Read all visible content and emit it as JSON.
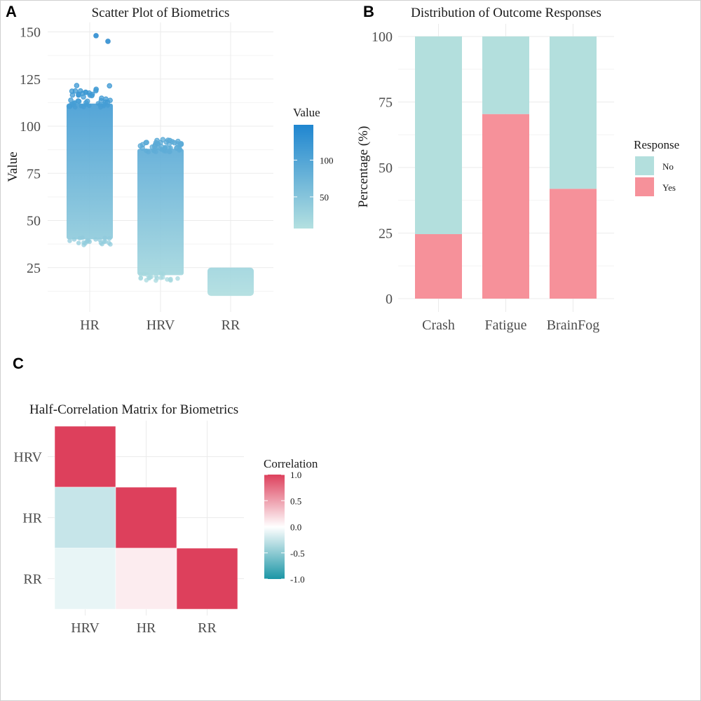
{
  "panels": {
    "a": {
      "label": "A"
    },
    "b": {
      "label": "B"
    },
    "c": {
      "label": "C"
    }
  },
  "chart_data": [
    {
      "id": "scatter",
      "type": "scatter",
      "title": "Scatter Plot of Biometrics",
      "xlabel": "",
      "ylabel": "Value",
      "categories": [
        "HR",
        "HRV",
        "RR"
      ],
      "ylim": [
        5,
        152
      ],
      "yticks": [
        25,
        50,
        75,
        100,
        125,
        150
      ],
      "grid": true,
      "jitter_ranges": [
        {
          "category": "HR",
          "min": 37,
          "max": 122,
          "dense_max": 112,
          "outliers": [
            148,
            145
          ]
        },
        {
          "category": "HRV",
          "min": 18,
          "max": 93,
          "dense_max": 88,
          "outliers": []
        },
        {
          "category": "RR",
          "min": 7,
          "max": 25,
          "dense_max": 25,
          "outliers": []
        }
      ],
      "colorbar": {
        "title": "Value",
        "ticks": [
          50,
          100
        ],
        "range": [
          7,
          148
        ],
        "low_color": "#b3e0e0",
        "high_color": "#1f86d0"
      },
      "legend_position": "right"
    },
    {
      "id": "stacked",
      "type": "bar",
      "stacked": true,
      "title": "Distribution of Outcome Responses",
      "xlabel": "",
      "ylabel": "Percentage (%)",
      "categories": [
        "Crash",
        "Fatigue",
        "BrainFog"
      ],
      "ylim": [
        0,
        100
      ],
      "yticks": [
        0,
        25,
        50,
        75,
        100
      ],
      "series": [
        {
          "name": "Yes",
          "color": "#f6919a",
          "values": [
            24.6,
            70.4,
            41.9
          ]
        },
        {
          "name": "No",
          "color": "#b3dfdd",
          "values": [
            75.4,
            29.6,
            58.1
          ]
        }
      ],
      "legend": {
        "title": "Response",
        "entries": [
          "No",
          "Yes"
        ],
        "position": "right"
      },
      "grid": true
    },
    {
      "id": "corr",
      "type": "heatmap",
      "title": "Half-Correlation Matrix for Biometrics",
      "x_categories": [
        "HRV",
        "HR",
        "RR"
      ],
      "y_categories": [
        "HRV",
        "HR",
        "RR"
      ],
      "cells": [
        {
          "x": "HRV",
          "y": "HRV",
          "value": 1.0
        },
        {
          "x": "HRV",
          "y": "HR",
          "value": -0.25
        },
        {
          "x": "HR",
          "y": "HR",
          "value": 1.0
        },
        {
          "x": "HRV",
          "y": "RR",
          "value": -0.1
        },
        {
          "x": "HR",
          "y": "RR",
          "value": 0.1
        },
        {
          "x": "RR",
          "y": "RR",
          "value": 1.0
        }
      ],
      "colorbar": {
        "title": "Correlation",
        "ticks": [
          "1.0",
          "0.5",
          "0.0",
          "-0.5",
          "-1.0"
        ],
        "tick_values": [
          1.0,
          0.5,
          0.0,
          -0.5,
          -1.0
        ],
        "range": [
          -1,
          1
        ],
        "low_color": "#1b96a6",
        "mid_color": "#ffffff",
        "high_color": "#dd405c"
      },
      "legend_position": "right",
      "grid": true
    }
  ]
}
